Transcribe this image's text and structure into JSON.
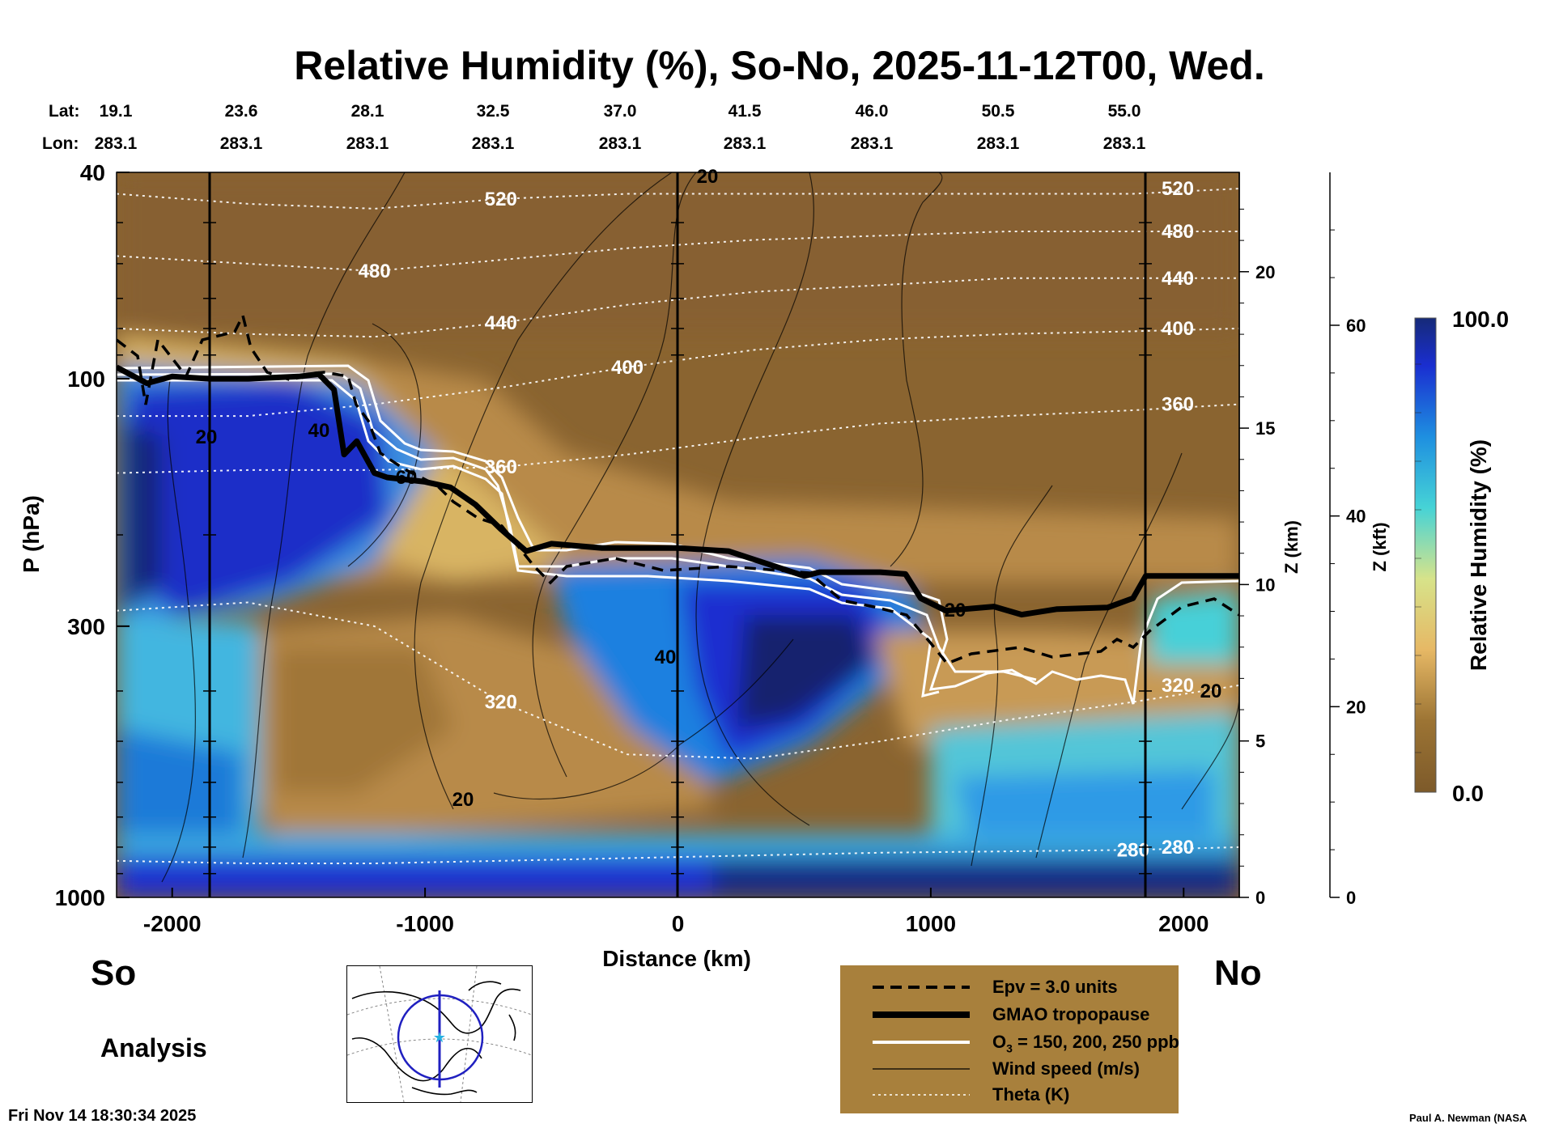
{
  "title": "Relative Humidity (%), So-No, 2025-11-12T00, Wed.",
  "coords": {
    "lat_label": "Lat:",
    "lon_label": "Lon:",
    "lat": [
      "19.1",
      "23.6",
      "28.1",
      "32.5",
      "37.0",
      "41.5",
      "46.0",
      "50.5",
      "55.0"
    ],
    "lon": [
      "283.1",
      "283.1",
      "283.1",
      "283.1",
      "283.1",
      "283.1",
      "283.1",
      "283.1",
      "283.1"
    ]
  },
  "south_label": "So",
  "north_label": "No",
  "analysis_label": "Analysis",
  "timestamp": "Fri Nov 14 18:30:34 2025",
  "credit": "Paul A. Newman (NASA",
  "colors": {
    "dry": "#7d5a2a",
    "moist": "#1a2a8a",
    "tropopause": "#000000",
    "ozone": "#ffffff",
    "theta": "#ffffff",
    "legend_bg": "#a8803c"
  },
  "legend": {
    "epv": "Epv = 3.0 units",
    "tropopause": "GMAO tropopause",
    "ozone_prefix": "O",
    "ozone_sub": "3",
    "ozone_suffix": " = 150, 200, 250 ppb",
    "wind": "Wind speed (m/s)",
    "theta": "Theta (K)"
  },
  "chart_data": {
    "type": "heatmap",
    "xlabel": "Distance (km)",
    "ylabel": "P (hPa)",
    "y2label": "Z (km)",
    "y3label": "Z (kft)",
    "colorbar_label": "Relative Humidity (%)",
    "colorbar_range": [
      0.0,
      100.0
    ],
    "colorbar_ticks": [
      "0.0",
      "100.0"
    ],
    "xlim": [
      -2220,
      2220
    ],
    "x_ticks": [
      -2000,
      -1000,
      0,
      1000,
      2000
    ],
    "x_tick_labels": [
      "-2000",
      "-1000",
      "0",
      "1000",
      "2000"
    ],
    "y_scale": "log",
    "ylim": [
      1000,
      40
    ],
    "y_tick_labels": [
      "40",
      "100",
      "300",
      "1000"
    ],
    "z_km_ticks": [
      "0",
      "5",
      "10",
      "15",
      "20"
    ],
    "z_kft_ticks": [
      "0",
      "20",
      "40",
      "60"
    ],
    "tropopause": {
      "x": [
        -2220,
        -2100,
        -2000,
        -1850,
        -1700,
        -1500,
        -1420,
        -1360,
        -1320,
        -1270,
        -1200,
        -1150,
        -1000,
        -900,
        -800,
        -700,
        -600,
        -500,
        -300,
        0,
        200,
        500,
        560,
        800,
        900,
        960,
        1060,
        1250,
        1360,
        1500,
        1700,
        1800,
        1850,
        2220
      ],
      "p": [
        95,
        102,
        99,
        100,
        100,
        99,
        98,
        105,
        140,
        132,
        152,
        155,
        158,
        162,
        175,
        195,
        215,
        208,
        212,
        212,
        215,
        240,
        236,
        236,
        238,
        265,
        280,
        275,
        285,
        278,
        276,
        265,
        240,
        240
      ]
    },
    "theta_K": [
      {
        "label": "520",
        "p": [
          44,
          46,
          47,
          45,
          44,
          44,
          44,
          44,
          44,
          43
        ]
      },
      {
        "label": "480",
        "p": [
          58,
          60,
          62,
          59,
          56,
          54,
          53,
          52,
          52,
          52
        ]
      },
      {
        "label": "440",
        "p": [
          80,
          82,
          83,
          78,
          72,
          68,
          66,
          64,
          64,
          64
        ]
      },
      {
        "label": "400",
        "p": [
          118,
          118,
          112,
          104,
          95,
          88,
          84,
          82,
          81,
          80
        ]
      },
      {
        "label": "360",
        "p": [
          152,
          150,
          150,
          148,
          140,
          130,
          122,
          118,
          115,
          112
        ]
      },
      {
        "label": "320",
        "p": [
          280,
          270,
          300,
          420,
          530,
          540,
          500,
          455,
          420,
          390
        ]
      },
      {
        "label": "280",
        "p": [
          850,
          860,
          860,
          850,
          840,
          830,
          820,
          815,
          810,
          800
        ]
      }
    ],
    "theta_x": [
      -2220,
      -1700,
      -1200,
      -700,
      -200,
      300,
      800,
      1300,
      1800,
      2220
    ],
    "wind_contour_labels": [
      "20",
      "20",
      "40",
      "60",
      "40",
      "20",
      "20",
      "20"
    ]
  }
}
